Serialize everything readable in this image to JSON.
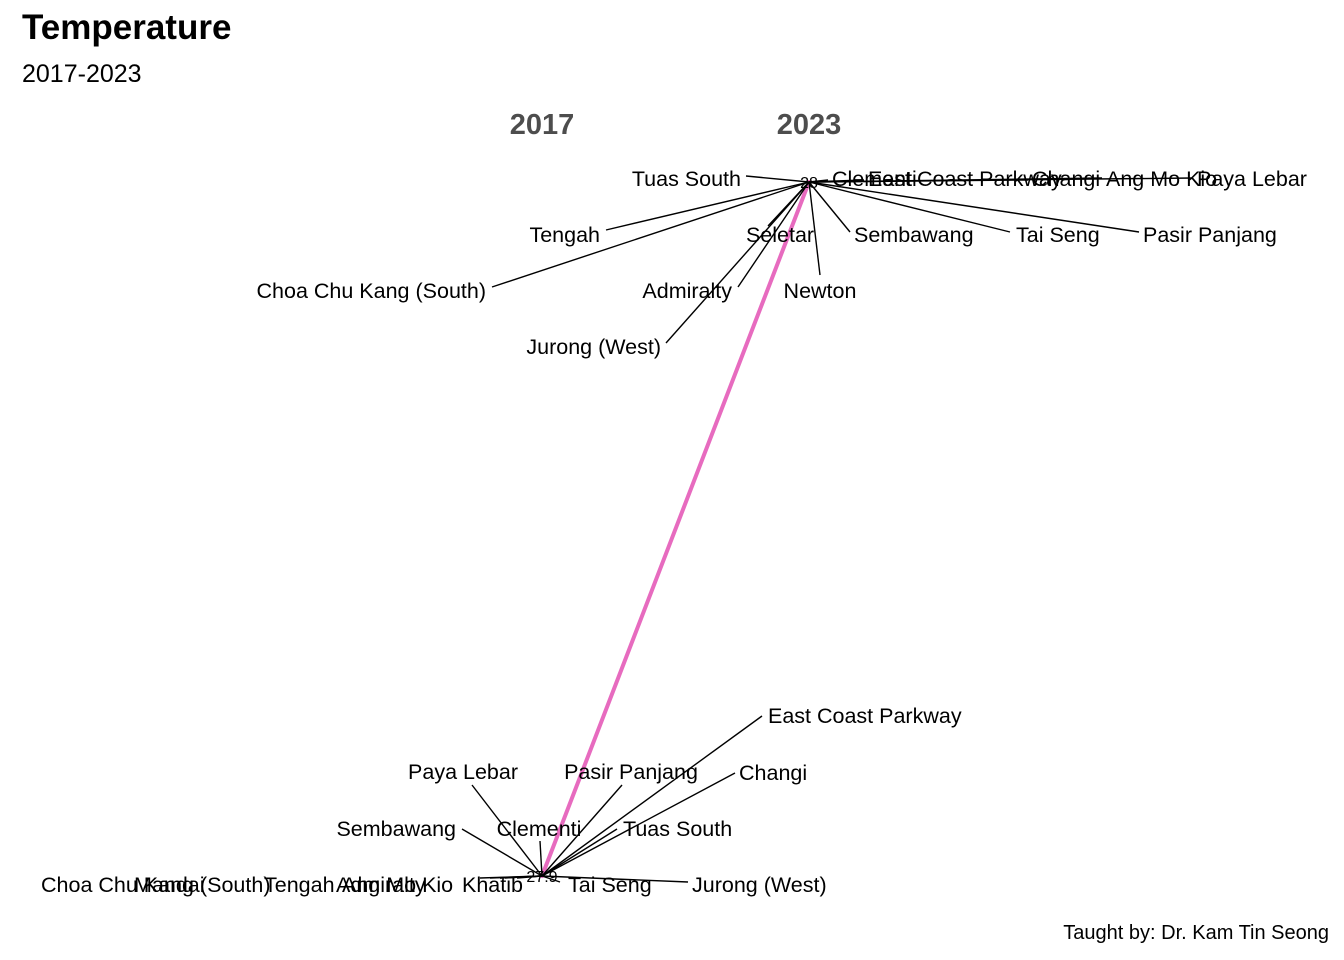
{
  "title": "Temperature",
  "subtitle": "2017-2023",
  "caption": "Taught by: Dr. Kam Tin Seong",
  "chart_data": {
    "type": "line",
    "title": "Temperature",
    "subtitle": "2017-2023",
    "x": [
      "2017",
      "2023"
    ],
    "ylim": [
      27.9,
      28
    ],
    "series": [
      {
        "name": "",
        "values": [
          27.9,
          28
        ],
        "color": "#e76bbf"
      }
    ],
    "labels_2017": [
      "Paya Lebar",
      "Pasir Panjang",
      "East Coast Parkway",
      "Changi",
      "Sembawang",
      "Clementi",
      "Tuas South",
      "Choa Chu Kang (South)",
      "Mandai",
      "Ang Mo Kio",
      "Tengah",
      "Admiralty",
      "Khatib",
      "Tai Seng",
      "Jurong (West)"
    ],
    "labels_2023": [
      "Tuas South",
      "Clementi",
      "East Coast Parkway",
      "Changi",
      "Ang Mo Kio",
      "Paya Lebar",
      "Tengah",
      "Seletar",
      "Sembawang",
      "Tai Seng",
      "Pasir Panjang",
      "Choa Chu Kang (South)",
      "Admiralty",
      "Newton",
      "Jurong (West)"
    ],
    "value_labels": [
      "27.9",
      "28"
    ]
  }
}
